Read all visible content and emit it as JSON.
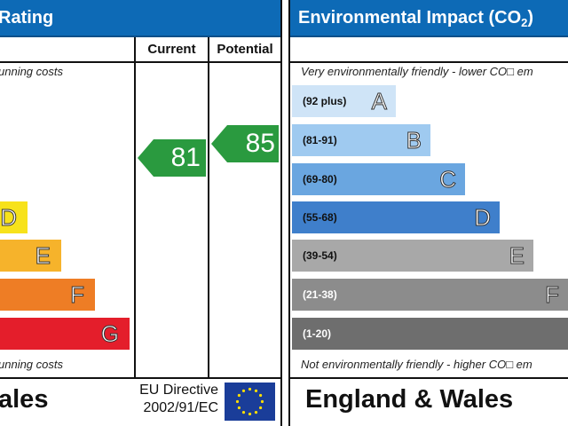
{
  "energy_panel": {
    "title": "Rating",
    "columns": {
      "current": "Current",
      "potential": "Potential"
    },
    "top_caption": "unning costs",
    "bottom_caption": "unning costs",
    "bands": [
      {
        "letter": "D",
        "color": "#f7e21b"
      },
      {
        "letter": "E",
        "color": "#f6b32b"
      },
      {
        "letter": "F",
        "color": "#ee7d25"
      },
      {
        "letter": "G",
        "color": "#e41e2b"
      }
    ],
    "current_rating": "81",
    "potential_rating": "85",
    "marker_color": "#2a9a3f",
    "footer": "ales",
    "eu_directive_line1": "EU Directive",
    "eu_directive_line2": "2002/91/EC"
  },
  "environment_panel": {
    "title_main": "Environmental Impact (CO",
    "title_sub": "2",
    "title_end": ")",
    "top_caption": "Very environmentally friendly - lower CO□ em",
    "bottom_caption": "Not environmentally friendly - higher CO□ em",
    "bands": [
      {
        "range": "(92 plus)",
        "letter": "A",
        "color": "#cfe4f7"
      },
      {
        "range": "(81-91)",
        "letter": "B",
        "color": "#9fcaf0"
      },
      {
        "range": "(69-80)",
        "letter": "C",
        "color": "#6aa6e0"
      },
      {
        "range": "(55-68)",
        "letter": "D",
        "color": "#3f7fcb"
      },
      {
        "range": "(39-54)",
        "letter": "E",
        "color": "#a8a8a8"
      },
      {
        "range": "(21-38)",
        "letter": "F",
        "color": "#8c8c8c"
      },
      {
        "range": "(1-20)",
        "letter": "G",
        "color": "#6e6e6e"
      }
    ],
    "footer": "England & Wales"
  }
}
